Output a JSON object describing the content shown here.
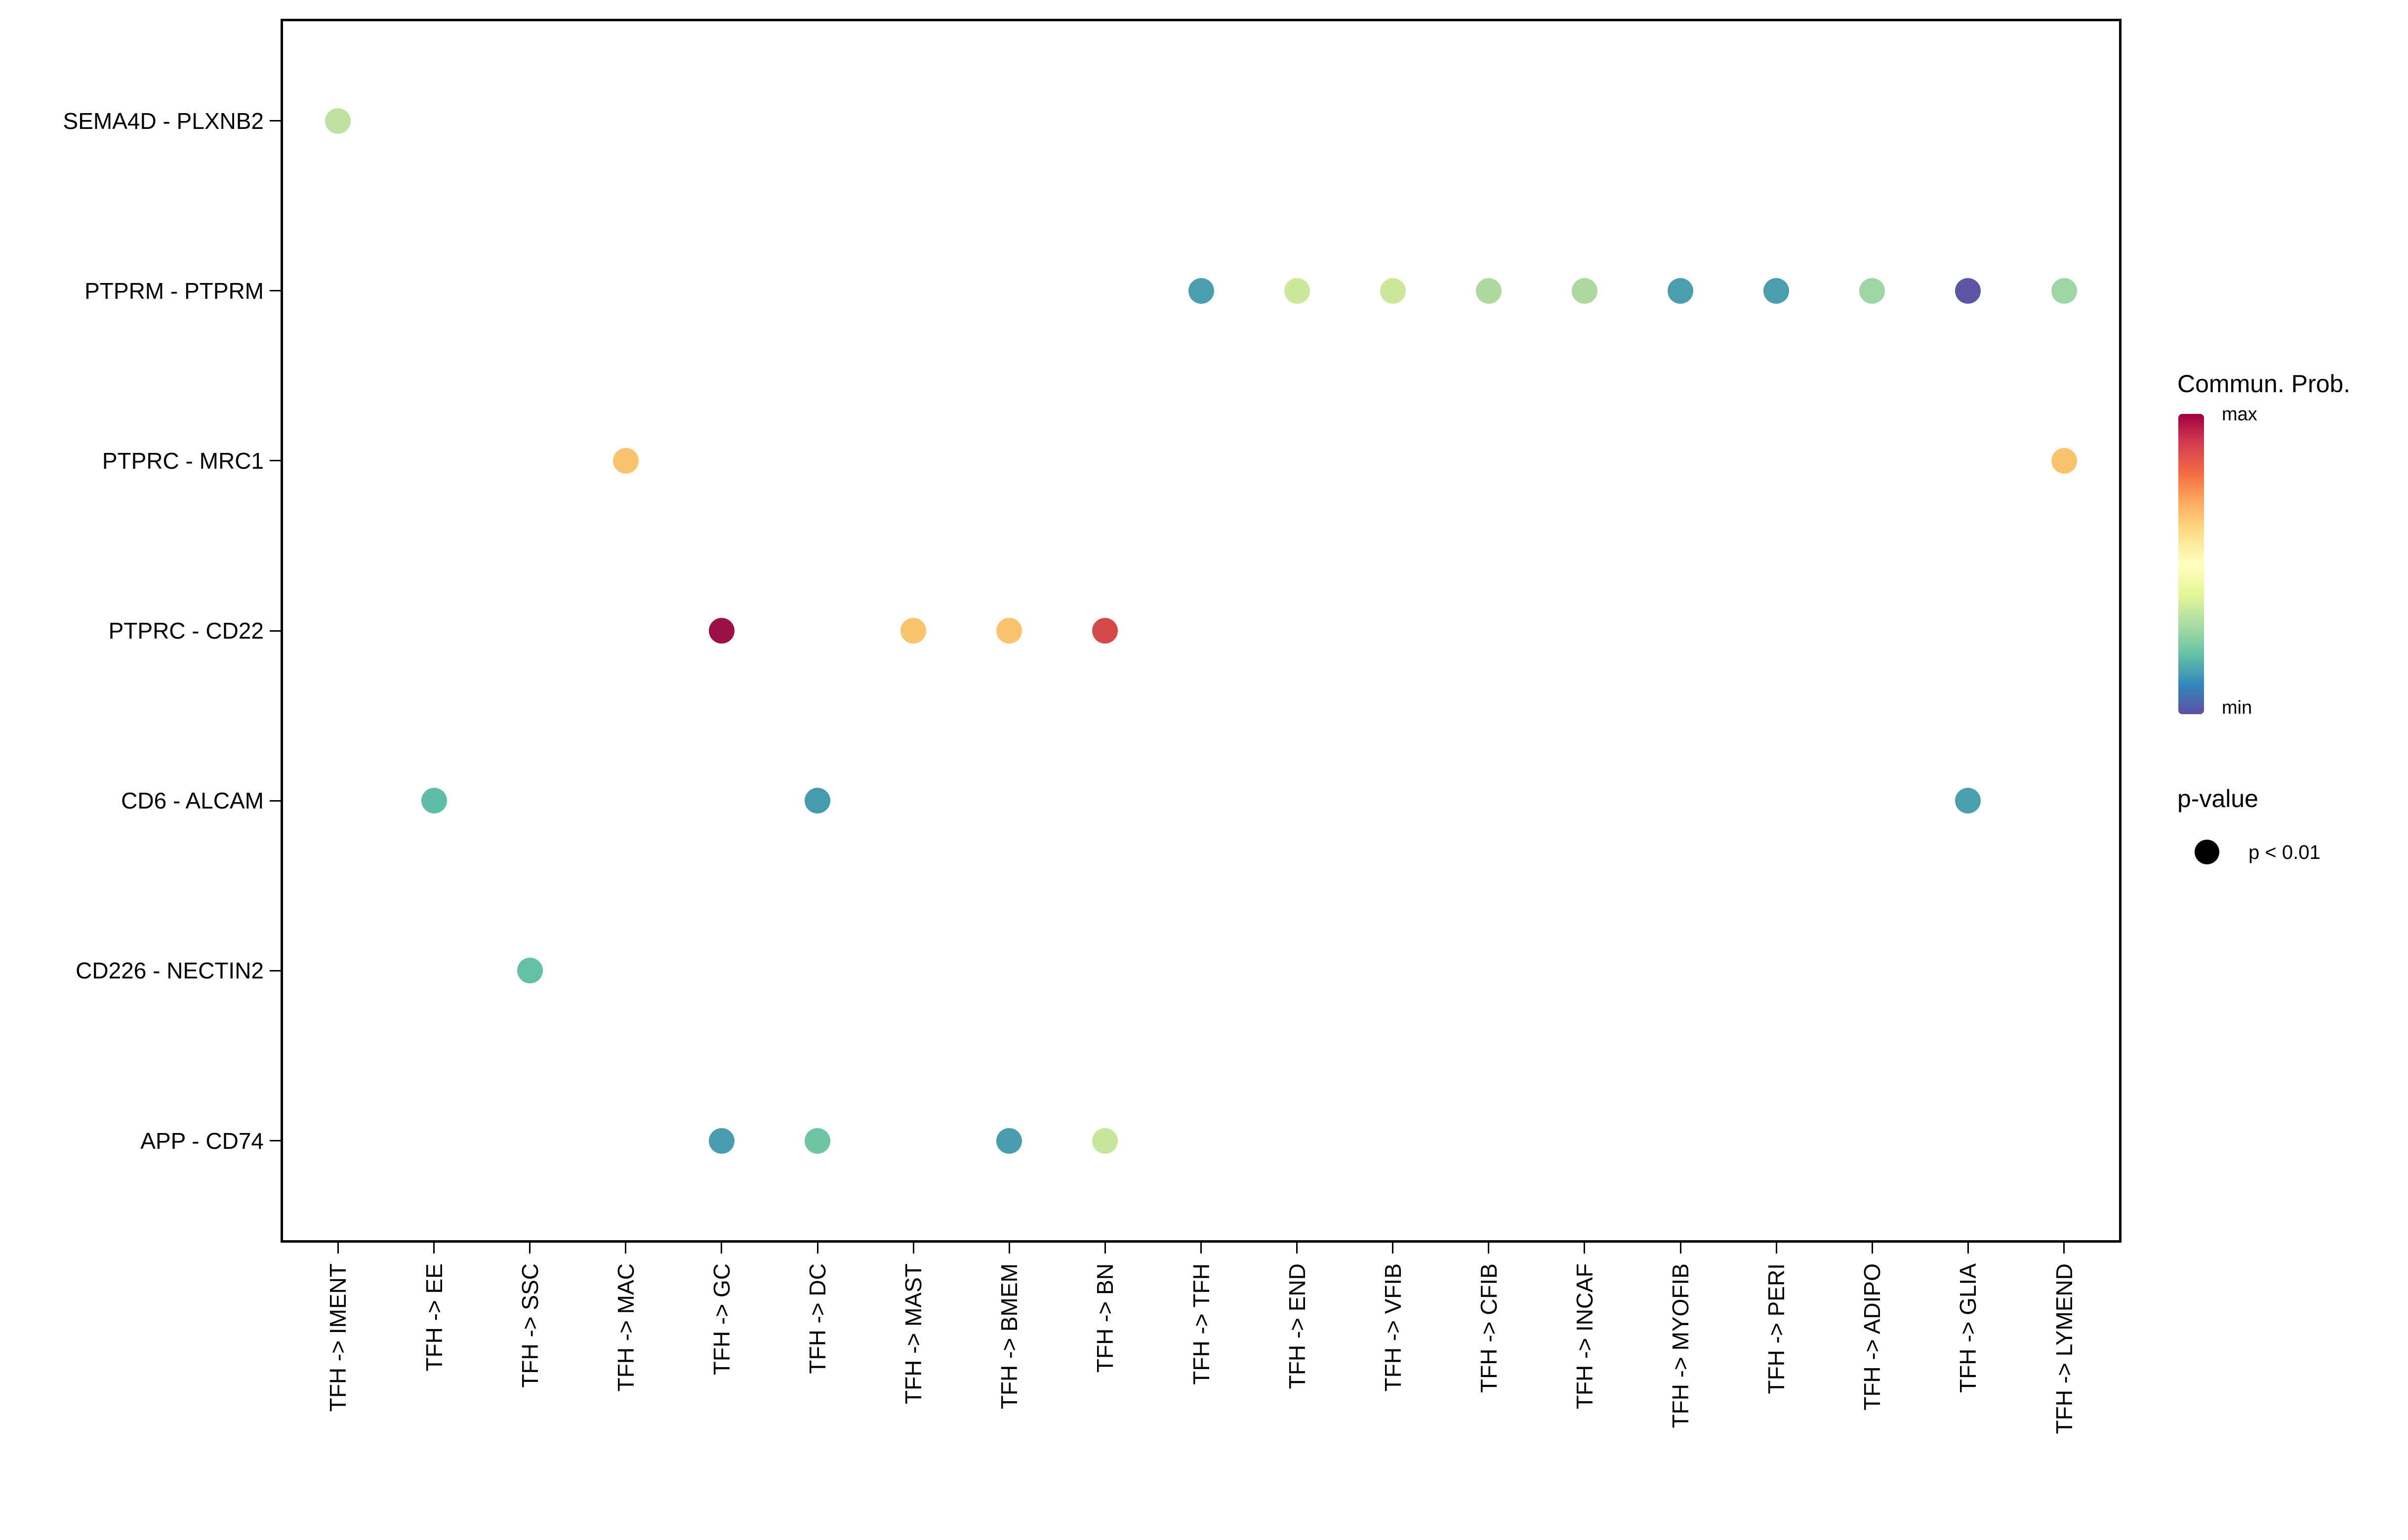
{
  "chart_data": {
    "type": "scatter",
    "title": "",
    "xlabel": "",
    "ylabel": "",
    "grid": true,
    "x_categories": [
      "TFH -> IMENT",
      "TFH -> EE",
      "TFH -> SSC",
      "TFH -> MAC",
      "TFH -> GC",
      "TFH -> DC",
      "TFH -> MAST",
      "TFH -> BMEM",
      "TFH -> BN",
      "TFH -> TFH",
      "TFH -> END",
      "TFH -> VFIB",
      "TFH -> CFIB",
      "TFH -> INCAF",
      "TFH -> MYOFIB",
      "TFH -> PERI",
      "TFH -> ADIPO",
      "TFH -> GLIA",
      "TFH -> LYMEND"
    ],
    "y_categories": [
      "SEMA4D - PLXNB2",
      "PTPRM - PTPRM",
      "PTPRC - MRC1",
      "PTPRC - CD22",
      "CD6 - ALCAM",
      "CD226 - NECTIN2",
      "APP - CD74"
    ],
    "points": [
      {
        "x": "TFH -> IMENT",
        "y": "SEMA4D - PLXNB2",
        "col": 0,
        "row": 0,
        "color": "#bee0a0",
        "p": "p < 0.01"
      },
      {
        "x": "TFH -> TFH",
        "y": "PTPRM - PTPRM",
        "col": 9,
        "row": 1,
        "color": "#4a9eae",
        "p": "p < 0.01"
      },
      {
        "x": "TFH -> END",
        "y": "PTPRM - PTPRM",
        "col": 10,
        "row": 1,
        "color": "#cde89a",
        "p": "p < 0.01"
      },
      {
        "x": "TFH -> VFIB",
        "y": "PTPRM - PTPRM",
        "col": 11,
        "row": 1,
        "color": "#cde89a",
        "p": "p < 0.01"
      },
      {
        "x": "TFH -> CFIB",
        "y": "PTPRM - PTPRM",
        "col": 12,
        "row": 1,
        "color": "#aedaa0",
        "p": "p < 0.01"
      },
      {
        "x": "TFH -> INCAF",
        "y": "PTPRM - PTPRM",
        "col": 13,
        "row": 1,
        "color": "#aedaa0",
        "p": "p < 0.01"
      },
      {
        "x": "TFH -> MYOFIB",
        "y": "PTPRM - PTPRM",
        "col": 14,
        "row": 1,
        "color": "#4a9eae",
        "p": "p < 0.01"
      },
      {
        "x": "TFH -> PERI",
        "y": "PTPRM - PTPRM",
        "col": 15,
        "row": 1,
        "color": "#4a9eae",
        "p": "p < 0.01"
      },
      {
        "x": "TFH -> ADIPO",
        "y": "PTPRM - PTPRM",
        "col": 16,
        "row": 1,
        "color": "#9fd6a6",
        "p": "p < 0.01"
      },
      {
        "x": "TFH -> GLIA",
        "y": "PTPRM - PTPRM",
        "col": 17,
        "row": 1,
        "color": "#5e55a6",
        "p": "p < 0.01"
      },
      {
        "x": "TFH -> LYMEND",
        "y": "PTPRM - PTPRM",
        "col": 18,
        "row": 1,
        "color": "#9fd6a6",
        "p": "p < 0.01"
      },
      {
        "x": "TFH -> MAC",
        "y": "PTPRC - MRC1",
        "col": 3,
        "row": 2,
        "color": "#fac46f",
        "p": "p < 0.01"
      },
      {
        "x": "TFH -> LYMEND",
        "y": "PTPRC - MRC1",
        "col": 18,
        "row": 2,
        "color": "#fac46f",
        "p": "p < 0.01"
      },
      {
        "x": "TFH -> GC",
        "y": "PTPRC - CD22",
        "col": 4,
        "row": 3,
        "color": "#9c1247",
        "p": "p < 0.01"
      },
      {
        "x": "TFH -> MAST",
        "y": "PTPRC - CD22",
        "col": 6,
        "row": 3,
        "color": "#fac46f",
        "p": "p < 0.01"
      },
      {
        "x": "TFH -> BMEM",
        "y": "PTPRC - CD22",
        "col": 7,
        "row": 3,
        "color": "#fac46f",
        "p": "p < 0.01"
      },
      {
        "x": "TFH -> BN",
        "y": "PTPRC - CD22",
        "col": 8,
        "row": 3,
        "color": "#d6494b",
        "p": "p < 0.01"
      },
      {
        "x": "TFH -> EE",
        "y": "CD6 - ALCAM",
        "col": 1,
        "row": 4,
        "color": "#5fbca6",
        "p": "p < 0.01"
      },
      {
        "x": "TFH -> DC",
        "y": "CD6 - ALCAM",
        "col": 5,
        "row": 4,
        "color": "#459aad",
        "p": "p < 0.01"
      },
      {
        "x": "TFH -> GLIA",
        "y": "CD6 - ALCAM",
        "col": 17,
        "row": 4,
        "color": "#4aa0ae",
        "p": "p < 0.01"
      },
      {
        "x": "TFH -> SSC",
        "y": "CD226 - NECTIN2",
        "col": 2,
        "row": 5,
        "color": "#63c0a4",
        "p": "p < 0.01"
      },
      {
        "x": "TFH -> GC",
        "y": "APP - CD74",
        "col": 4,
        "row": 6,
        "color": "#4a9dae",
        "p": "p < 0.01"
      },
      {
        "x": "TFH -> DC",
        "y": "APP - CD74",
        "col": 5,
        "row": 6,
        "color": "#6fc4a3",
        "p": "p < 0.01"
      },
      {
        "x": "TFH -> BMEM",
        "y": "APP - CD74",
        "col": 7,
        "row": 6,
        "color": "#4a9dae",
        "p": "p < 0.01"
      },
      {
        "x": "TFH -> BN",
        "y": "APP - CD74",
        "col": 8,
        "row": 6,
        "color": "#c8e69b",
        "p": "p < 0.01"
      }
    ],
    "color_scale": {
      "label": "Commun. Prob.",
      "max_label": "max",
      "min_label": "min",
      "stops_top_to_bottom": [
        "#9e0142",
        "#d53e4f",
        "#f46d43",
        "#fdae61",
        "#fee08b",
        "#ffffbf",
        "#e6f598",
        "#abdda4",
        "#66c2a5",
        "#3288bd",
        "#5e4fa2"
      ]
    },
    "legend_position": "right"
  },
  "legend": {
    "color_title": "Commun. Prob.",
    "color_max_label": "max",
    "color_min_label": "min",
    "pvalue_title": "p-value",
    "pvalue_items": [
      {
        "label": "p < 0.01",
        "dot_color": "#000000"
      }
    ]
  }
}
